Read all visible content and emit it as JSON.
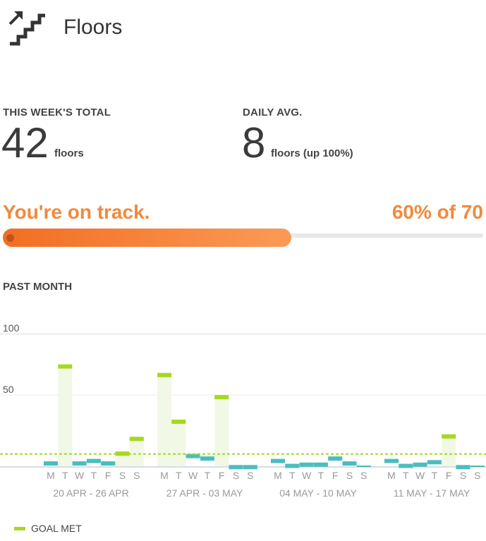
{
  "header": {
    "title": "Floors",
    "icon": "stairs-icon"
  },
  "stats": {
    "week_total_label": "THIS WEEK'S TOTAL",
    "week_total_value": "42",
    "week_total_unit": "floors",
    "daily_avg_label": "DAILY AVG.",
    "daily_avg_value": "8",
    "daily_avg_unit": "floors (up 100%)"
  },
  "progress": {
    "status_text": "You're on track.",
    "percent_text": "60% of 70",
    "fraction": 0.6,
    "color": "#f26e22"
  },
  "past_month": {
    "section_label": "PAST MONTH",
    "legend_label": "GOAL MET",
    "colors": {
      "goal_met": "#a6d81e",
      "not_met": "#4bbdbd",
      "goal_line": "#a6d81e",
      "bar_fill": "#f1f8e5"
    }
  },
  "chart_data": {
    "type": "bar",
    "y_ticks": [
      "100",
      "50"
    ],
    "ylim": [
      0,
      100
    ],
    "goal": 10,
    "day_labels": [
      "M",
      "T",
      "W",
      "T",
      "F",
      "S",
      "S"
    ],
    "weeks": [
      {
        "label": "20 APR - 26 APR",
        "values": [
          4,
          83,
          4,
          6,
          4,
          12,
          24
        ],
        "goal_met": [
          false,
          true,
          false,
          false,
          false,
          true,
          true
        ]
      },
      {
        "label": "27 APR - 03 MAY",
        "values": [
          76,
          38,
          10,
          8,
          58,
          1,
          1
        ],
        "goal_met": [
          true,
          true,
          false,
          false,
          true,
          false,
          false
        ]
      },
      {
        "label": "04 MAY - 10 MAY",
        "values": [
          6,
          2,
          3,
          3,
          8,
          4,
          0
        ],
        "goal_met": [
          false,
          false,
          false,
          false,
          false,
          false,
          false
        ]
      },
      {
        "label": "11 MAY - 17 MAY",
        "values": [
          6,
          2,
          3,
          5,
          26,
          1,
          0
        ],
        "goal_met": [
          false,
          false,
          false,
          false,
          true,
          false,
          false
        ]
      }
    ],
    "legend": [
      "GOAL MET"
    ]
  }
}
